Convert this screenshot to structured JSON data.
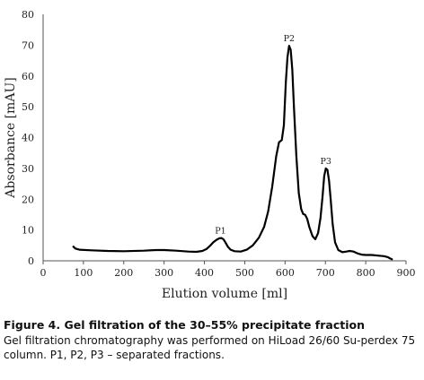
{
  "chart_data": {
    "type": "line",
    "xlabel": "Elution volume [ml]",
    "ylabel": "Absorbance [mAU]",
    "xlim": [
      0,
      900
    ],
    "ylim": [
      0,
      80
    ],
    "x_ticks": [
      0,
      100,
      200,
      300,
      400,
      500,
      600,
      700,
      800,
      900
    ],
    "y_ticks": [
      0,
      10,
      20,
      30,
      40,
      50,
      60,
      70,
      80
    ],
    "grid": false,
    "legend": "none",
    "series": [
      {
        "x": [
          75,
          80,
          90,
          120,
          160,
          200,
          250,
          280,
          300,
          330,
          360,
          380,
          395,
          405,
          415,
          422,
          430,
          437,
          442,
          447,
          452,
          458,
          465,
          475,
          490,
          505,
          520,
          535,
          548,
          558,
          568,
          578,
          585,
          592,
          597,
          602,
          606,
          610,
          614,
          618,
          622,
          628,
          634,
          640,
          645,
          650,
          655,
          660,
          668,
          675,
          682,
          688,
          693,
          697,
          701,
          705,
          709,
          713,
          718,
          724,
          732,
          742,
          752,
          760,
          770,
          780,
          790,
          800,
          815,
          830,
          845,
          855,
          860,
          865
        ],
        "y": [
          4.6,
          4.0,
          3.6,
          3.4,
          3.2,
          3.1,
          3.3,
          3.5,
          3.5,
          3.3,
          3.0,
          2.9,
          3.2,
          3.8,
          5.0,
          6.0,
          6.8,
          7.3,
          7.4,
          7.0,
          6.0,
          4.6,
          3.6,
          3.1,
          3.0,
          3.6,
          5.0,
          7.5,
          11.0,
          16.0,
          24.0,
          34.0,
          38.5,
          39.2,
          44.0,
          58.0,
          66.0,
          69.8,
          68.5,
          62.0,
          50.0,
          34.0,
          22.0,
          16.8,
          15.2,
          14.9,
          13.6,
          11.0,
          8.0,
          7.0,
          9.0,
          14.0,
          21.0,
          27.5,
          30.0,
          29.5,
          26.0,
          20.0,
          12.0,
          6.0,
          3.5,
          2.8,
          3.0,
          3.2,
          3.0,
          2.4,
          2.0,
          1.9,
          1.9,
          1.7,
          1.5,
          1.2,
          0.8,
          0.5
        ]
      }
    ],
    "annotations": [
      {
        "text": "P1",
        "x": 440,
        "y": 7.4
      },
      {
        "text": "P2",
        "x": 610,
        "y": 69.8
      },
      {
        "text": "P3",
        "x": 701,
        "y": 30.0
      }
    ]
  },
  "caption": {
    "title": "Figure 4. Gel filtration of the 30–55% precipitate fraction",
    "body": "Gel filtration chromatography was performed on HiLoad 26/60 Su-perdex 75 column. P1, P2, P3 – separated fractions."
  }
}
